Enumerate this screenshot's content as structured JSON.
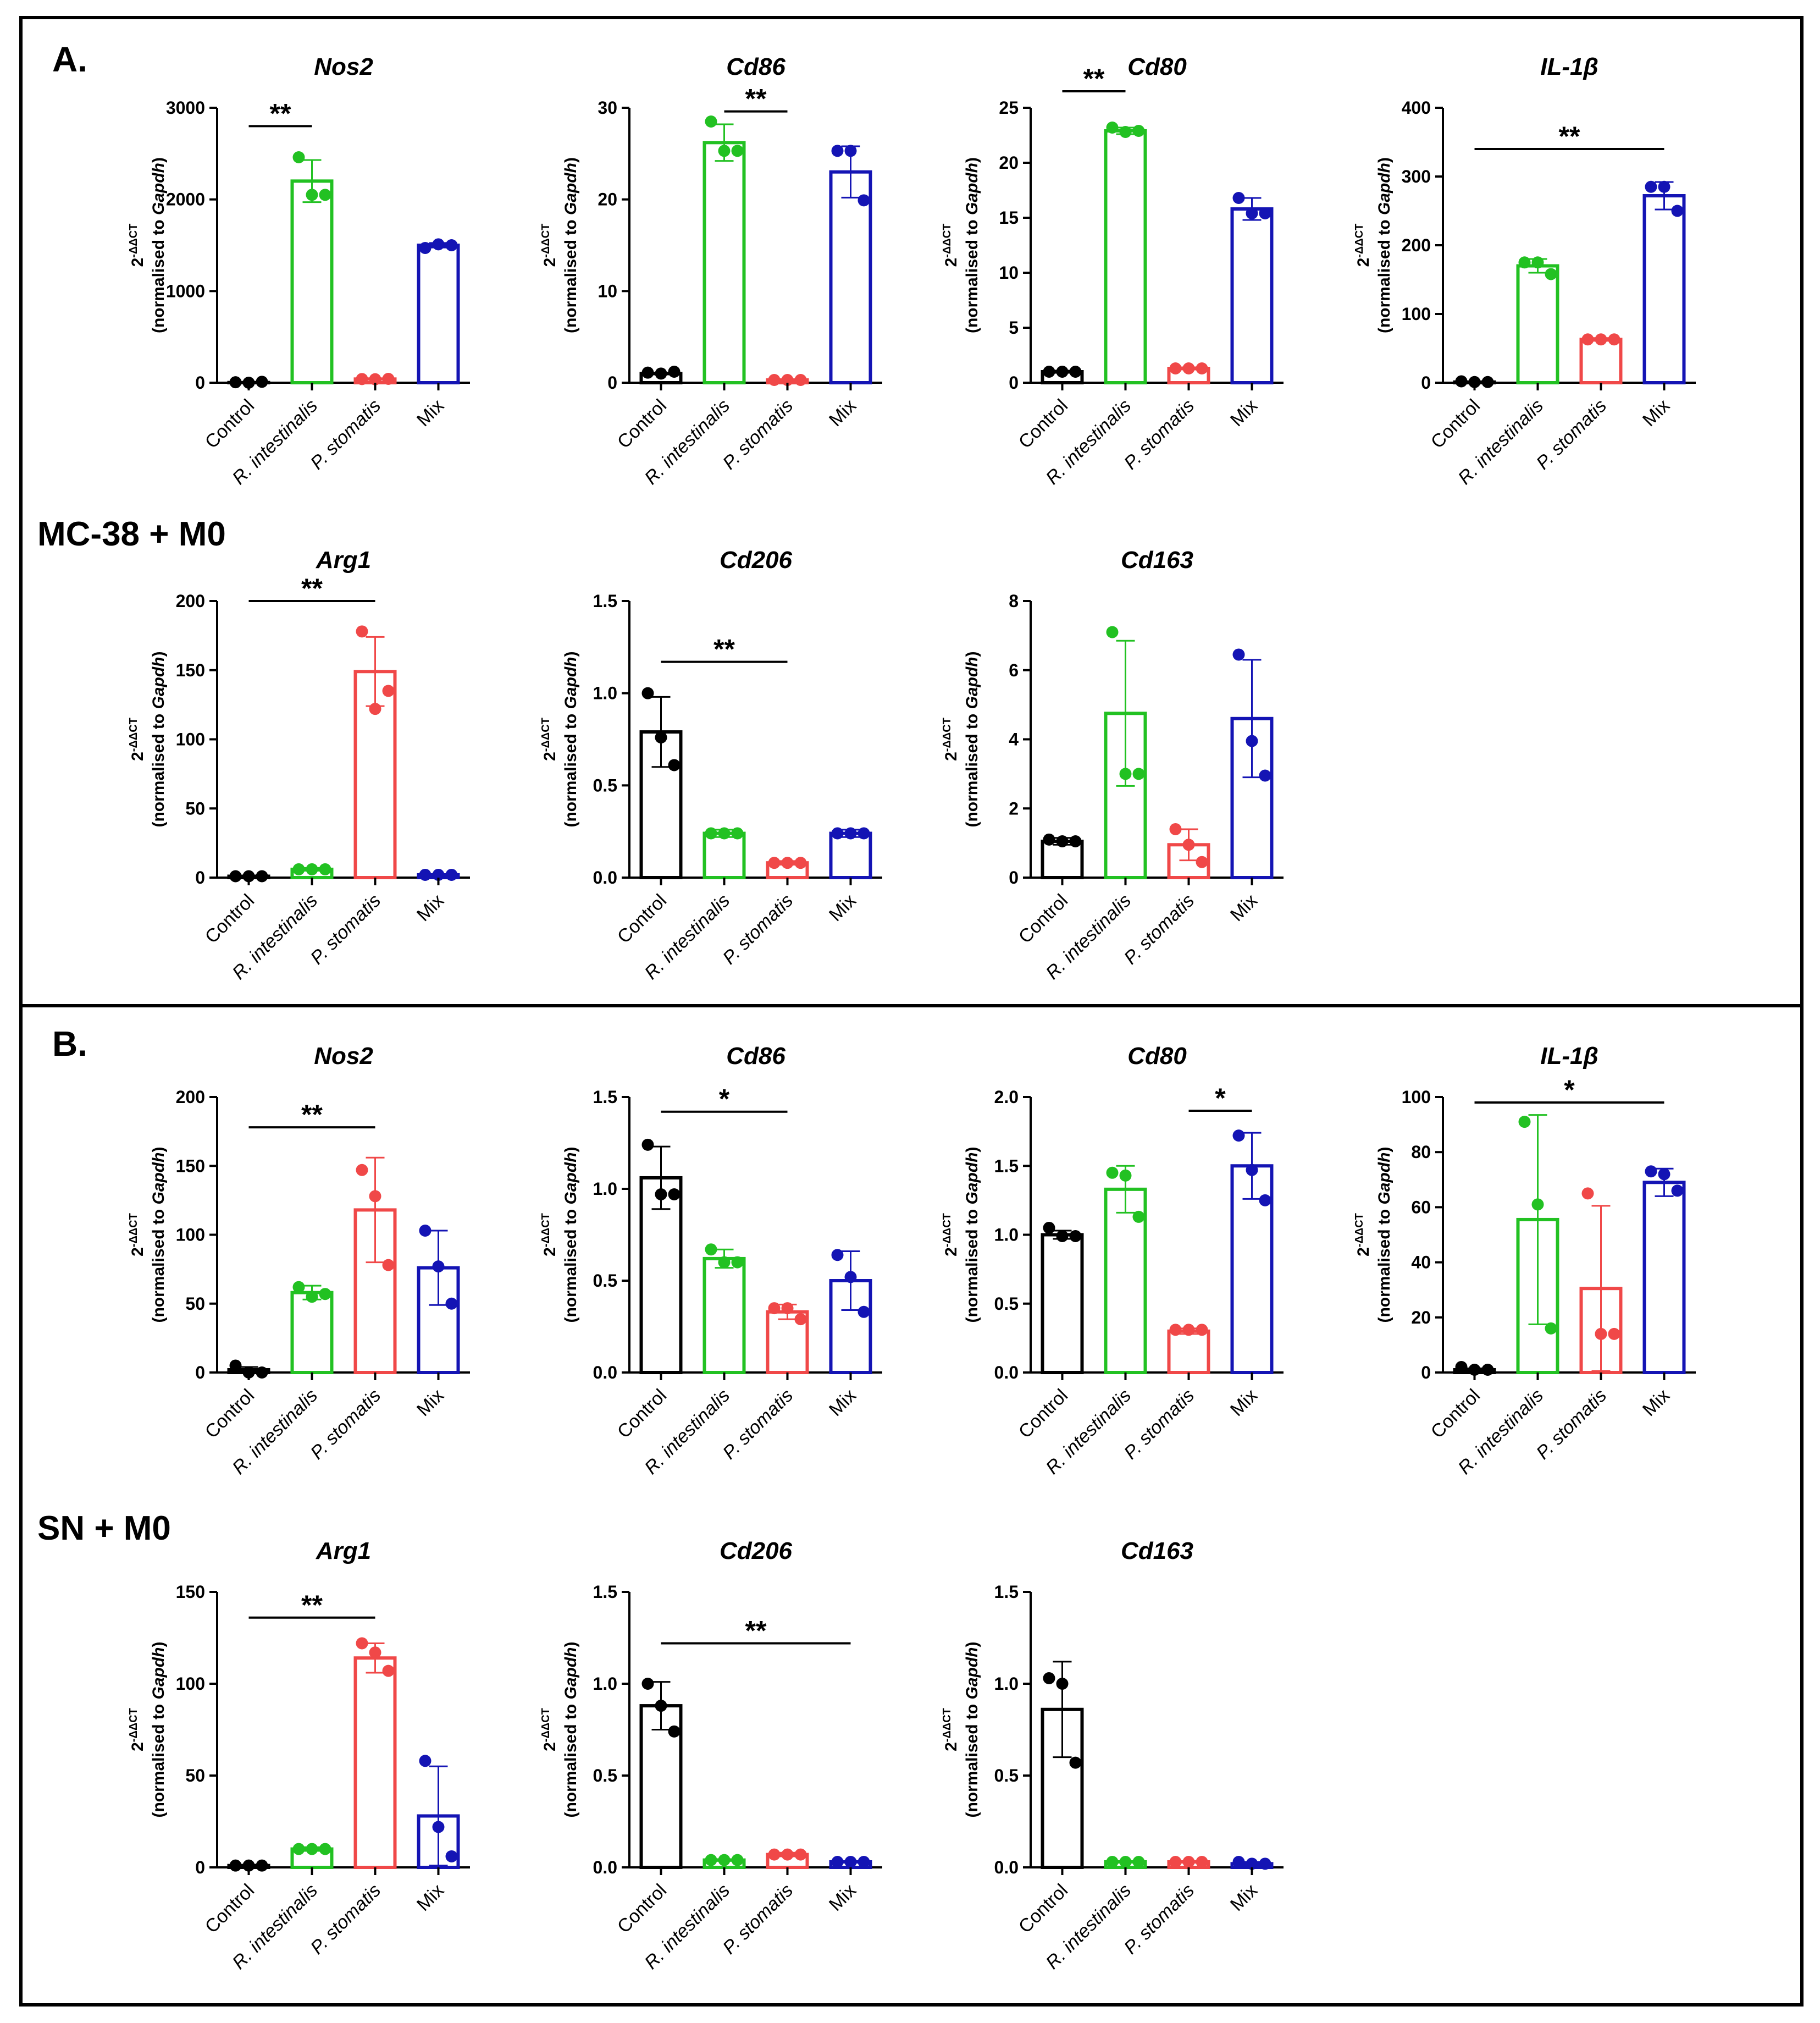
{
  "figure": {
    "background": "#ffffff",
    "colors": {
      "Control": "#000000",
      "R. intestinalis": "#22c122",
      "P. stomatis": "#f04848",
      "Mix": "#1414b4"
    },
    "panels": [
      {
        "label": "A.",
        "group_label": "MC-38 + M0"
      },
      {
        "label": "B.",
        "group_label": "SN + M0"
      }
    ],
    "ylabel_main": "2",
    "ylabel_sup": "-ΔΔCT",
    "ylabel_line2_prefix": "(normalised to ",
    "ylabel_line2_gene": "Gapdh",
    "ylabel_line2_suffix": ")"
  },
  "chart_data": [
    {
      "type": "bar",
      "title": "Nos2",
      "categories": [
        "Control",
        "R. intestinalis",
        "P. stomatis",
        "Mix"
      ],
      "ylim": [
        0,
        3000
      ],
      "yticks": [
        "0",
        "1000",
        "2000",
        "3000"
      ],
      "values": [
        2,
        2200,
        40,
        1500
      ],
      "errors": [
        2,
        230,
        5,
        25
      ],
      "points": [
        [
          5,
          0,
          10
        ],
        [
          2460,
          2050,
          2050
        ],
        [
          40,
          38,
          42
        ],
        [
          1470,
          1510,
          1500
        ]
      ],
      "sig": [
        {
          "from": 0,
          "to": 1,
          "label": "**",
          "y": 2800
        }
      ]
    },
    {
      "type": "bar",
      "title": "Cd86",
      "categories": [
        "Control",
        "R. intestinalis",
        "P. stomatis",
        "Mix"
      ],
      "ylim": [
        0,
        30
      ],
      "yticks": [
        "0",
        "10",
        "20",
        "30"
      ],
      "values": [
        1,
        26.2,
        0.3,
        23
      ],
      "errors": [
        0.1,
        2,
        0.05,
        2.8
      ],
      "points": [
        [
          1.1,
          1,
          1.2
        ],
        [
          28.5,
          25.3,
          25.3
        ],
        [
          0.3,
          0.3,
          0.3
        ],
        [
          25.3,
          25.3,
          19.9
        ]
      ],
      "sig": [
        {
          "from": 1,
          "to": 2,
          "label": "**",
          "y": 29.6
        }
      ]
    },
    {
      "type": "bar",
      "title": "Cd80",
      "categories": [
        "Control",
        "R. intestinalis",
        "P. stomatis",
        "Mix"
      ],
      "ylim": [
        0,
        25
      ],
      "yticks": [
        "0",
        "5",
        "10",
        "15",
        "20",
        "25"
      ],
      "values": [
        1,
        22.9,
        1.3,
        15.8
      ],
      "errors": [
        0.1,
        0.3,
        0.1,
        1
      ],
      "points": [
        [
          1,
          1,
          1
        ],
        [
          23.2,
          22.8,
          22.9
        ],
        [
          1.3,
          1.3,
          1.3
        ],
        [
          16.8,
          15.4,
          15.4
        ]
      ],
      "sig": [
        {
          "from": 0,
          "to": 1,
          "label": "**",
          "y": 26.5
        }
      ]
    },
    {
      "type": "bar",
      "title": "IL-1β",
      "categories": [
        "Control",
        "R. intestinalis",
        "P. stomatis",
        "Mix"
      ],
      "ylim": [
        0,
        400
      ],
      "yticks": [
        "0",
        "100",
        "200",
        "300",
        "400"
      ],
      "values": [
        1,
        170,
        63,
        272
      ],
      "errors": [
        1,
        10,
        2,
        20
      ],
      "points": [
        [
          2,
          1,
          1
        ],
        [
          175,
          175,
          158
        ],
        [
          63,
          63,
          63
        ],
        [
          285,
          285,
          250
        ]
      ],
      "sig": [
        {
          "from": 0,
          "to": 3,
          "label": "**",
          "y": 340
        }
      ]
    },
    {
      "type": "bar",
      "title": "Arg1",
      "categories": [
        "Control",
        "R. intestinalis",
        "P. stomatis",
        "Mix"
      ],
      "ylim": [
        0,
        200
      ],
      "yticks": [
        "0",
        "50",
        "100",
        "150",
        "200"
      ],
      "values": [
        1,
        6,
        149,
        2
      ],
      "errors": [
        0.5,
        1,
        25,
        0.5
      ],
      "points": [
        [
          1,
          1,
          1
        ],
        [
          6,
          6,
          6
        ],
        [
          178,
          122,
          135
        ],
        [
          2,
          2,
          2
        ]
      ],
      "sig": [
        {
          "from": 0,
          "to": 2,
          "label": "**",
          "y": 200
        }
      ]
    },
    {
      "type": "bar",
      "title": "Cd206",
      "categories": [
        "Control",
        "R. intestinalis",
        "P. stomatis",
        "Mix"
      ],
      "ylim": [
        0,
        1.5
      ],
      "yticks": [
        "0.0",
        "0.5",
        "1.0",
        "1.5"
      ],
      "values": [
        0.79,
        0.24,
        0.08,
        0.24
      ],
      "errors": [
        0.19,
        0.02,
        0.01,
        0.02
      ],
      "points": [
        [
          1.0,
          0.76,
          0.61
        ],
        [
          0.24,
          0.24,
          0.24
        ],
        [
          0.08,
          0.08,
          0.08
        ],
        [
          0.24,
          0.24,
          0.24
        ]
      ],
      "sig": [
        {
          "from": 0,
          "to": 2,
          "label": "**",
          "y": 1.17
        }
      ]
    },
    {
      "type": "bar",
      "title": "Cd163",
      "categories": [
        "Control",
        "R. intestinalis",
        "P. stomatis",
        "Mix"
      ],
      "ylim": [
        0,
        8
      ],
      "yticks": [
        "0",
        "2",
        "4",
        "6",
        "8"
      ],
      "values": [
        1.05,
        4.75,
        0.95,
        4.6
      ],
      "errors": [
        0.1,
        2.1,
        0.45,
        1.7
      ],
      "points": [
        [
          1.1,
          1.05,
          1.05
        ],
        [
          7.1,
          3.0,
          3.0
        ],
        [
          1.4,
          0.95,
          0.45
        ],
        [
          6.45,
          3.95,
          2.95
        ]
      ],
      "sig": []
    },
    {
      "type": "bar",
      "title": "Nos2",
      "categories": [
        "Control",
        "R. intestinalis",
        "P. stomatis",
        "Mix"
      ],
      "ylim": [
        0,
        200
      ],
      "yticks": [
        "0",
        "50",
        "100",
        "150",
        "200"
      ],
      "values": [
        2,
        58,
        118,
        76
      ],
      "errors": [
        2,
        5,
        38,
        27
      ],
      "points": [
        [
          5,
          0,
          0
        ],
        [
          62,
          55,
          57
        ],
        [
          147,
          128,
          78
        ],
        [
          103,
          77,
          50
        ]
      ],
      "sig": [
        {
          "from": 0,
          "to": 2,
          "label": "**",
          "y": 178
        }
      ]
    },
    {
      "type": "bar",
      "title": "Cd86",
      "categories": [
        "Control",
        "R. intestinalis",
        "P. stomatis",
        "Mix"
      ],
      "ylim": [
        0,
        1.5
      ],
      "yticks": [
        "0.0",
        "0.5",
        "1.0",
        "1.5"
      ],
      "values": [
        1.06,
        0.62,
        0.33,
        0.5
      ],
      "errors": [
        0.17,
        0.05,
        0.04,
        0.16
      ],
      "points": [
        [
          1.24,
          0.97,
          0.97
        ],
        [
          0.67,
          0.6,
          0.6
        ],
        [
          0.35,
          0.35,
          0.29
        ],
        [
          0.64,
          0.52,
          0.33
        ]
      ],
      "sig": [
        {
          "from": 0,
          "to": 2,
          "label": "*",
          "y": 1.42
        }
      ]
    },
    {
      "type": "bar",
      "title": "Cd80",
      "categories": [
        "Control",
        "R. intestinalis",
        "P. stomatis",
        "Mix"
      ],
      "ylim": [
        0,
        2.0
      ],
      "yticks": [
        "0.0",
        "0.5",
        "1.0",
        "1.5",
        "2.0"
      ],
      "values": [
        1.0,
        1.33,
        0.3,
        1.5
      ],
      "errors": [
        0.03,
        0.17,
        0.02,
        0.24
      ],
      "points": [
        [
          1.05,
          0.99,
          0.99
        ],
        [
          1.45,
          1.43,
          1.13
        ],
        [
          0.31,
          0.31,
          0.31
        ],
        [
          1.72,
          1.47,
          1.25
        ]
      ],
      "sig": [
        {
          "from": 2,
          "to": 3,
          "label": "*",
          "y": 1.9
        }
      ]
    },
    {
      "type": "bar",
      "title": "IL-1β",
      "categories": [
        "Control",
        "R. intestinalis",
        "P. stomatis",
        "Mix"
      ],
      "ylim": [
        0,
        100
      ],
      "yticks": [
        "0",
        "20",
        "40",
        "60",
        "80",
        "100"
      ],
      "values": [
        1,
        55.5,
        30.5,
        69
      ],
      "errors": [
        0.5,
        38,
        30,
        5
      ],
      "points": [
        [
          2,
          1,
          1
        ],
        [
          91,
          61,
          16
        ],
        [
          65,
          14,
          14
        ],
        [
          73,
          72,
          66
        ]
      ],
      "sig": [
        {
          "from": 0,
          "to": 3,
          "label": "*",
          "y": 98
        }
      ]
    },
    {
      "type": "bar",
      "title": "Arg1",
      "categories": [
        "Control",
        "R. intestinalis",
        "P. stomatis",
        "Mix"
      ],
      "ylim": [
        0,
        150
      ],
      "yticks": [
        "0",
        "50",
        "100",
        "150"
      ],
      "values": [
        1,
        10,
        114,
        28
      ],
      "errors": [
        0.5,
        1,
        8,
        27
      ],
      "points": [
        [
          1,
          1,
          1
        ],
        [
          10,
          10,
          10
        ],
        [
          122,
          117,
          107
        ],
        [
          58,
          22,
          6
        ]
      ],
      "sig": [
        {
          "from": 0,
          "to": 2,
          "label": "**",
          "y": 136
        }
      ]
    },
    {
      "type": "bar",
      "title": "Cd206",
      "categories": [
        "Control",
        "R. intestinalis",
        "P. stomatis",
        "Mix"
      ],
      "ylim": [
        0,
        1.5
      ],
      "yticks": [
        "0.0",
        "0.5",
        "1.0",
        "1.5"
      ],
      "values": [
        0.88,
        0.04,
        0.07,
        0.03
      ],
      "errors": [
        0.13,
        0.005,
        0.01,
        0.005
      ],
      "points": [
        [
          1.0,
          0.88,
          0.74
        ],
        [
          0.04,
          0.04,
          0.04
        ],
        [
          0.07,
          0.07,
          0.07
        ],
        [
          0.03,
          0.03,
          0.03
        ]
      ],
      "sig": [
        {
          "from": 0,
          "to": 3,
          "label": "**",
          "y": 1.22
        }
      ]
    },
    {
      "type": "bar",
      "title": "Cd163",
      "categories": [
        "Control",
        "R. intestinalis",
        "P. stomatis",
        "Mix"
      ],
      "ylim": [
        0,
        1.5
      ],
      "yticks": [
        "0.0",
        "0.5",
        "1.0",
        "1.5"
      ],
      "values": [
        0.86,
        0.03,
        0.03,
        0.02
      ],
      "errors": [
        0.26,
        0.005,
        0.005,
        0.01
      ],
      "points": [
        [
          1.03,
          1.0,
          0.57
        ],
        [
          0.03,
          0.03,
          0.03
        ],
        [
          0.03,
          0.03,
          0.03
        ],
        [
          0.03,
          0.02,
          0.02
        ]
      ],
      "sig": []
    }
  ]
}
